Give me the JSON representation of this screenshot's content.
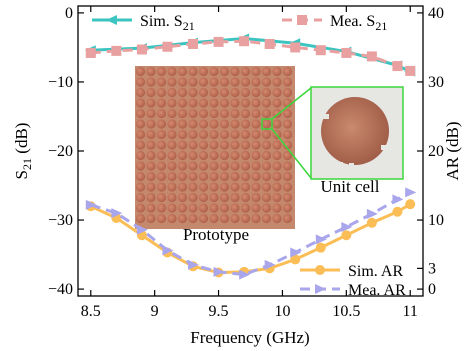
{
  "chart_data": {
    "type": "line",
    "x": [
      8.5,
      8.7,
      8.9,
      9.1,
      9.3,
      9.5,
      9.7,
      9.9,
      10.1,
      10.3,
      10.5,
      10.7,
      10.9,
      11.0
    ],
    "xlabel": "Frequency (GHz)",
    "ylabel_left": "S21 (dB)",
    "ylabel_right": "AR (dB)",
    "xlim": [
      8.4,
      11.1
    ],
    "ylim_left": [
      -41,
      1
    ],
    "ylim_right": [
      -1,
      41
    ],
    "xticks": [
      8.5,
      9,
      9.5,
      10,
      10.5,
      11
    ],
    "xtick_labels": [
      "8.5",
      "9",
      "9.5",
      "10",
      "10.5",
      "11"
    ],
    "yticks_left": [
      0,
      -10,
      -20,
      -30,
      -40
    ],
    "ytick_labels_left": [
      "0",
      "−10",
      "−20",
      "−30",
      "−40"
    ],
    "yticks_right": [
      40,
      30,
      20,
      10,
      3,
      0
    ],
    "ytick_labels_right": [
      "40",
      "30",
      "20",
      "10",
      "3",
      "0"
    ],
    "series": [
      {
        "name": "Sim. S21",
        "axis": "left",
        "color": "#3cc4c0",
        "marker": "triangle-left",
        "style": "solid",
        "x": [
          8.5,
          8.9,
          9.3,
          9.7,
          10.1,
          10.5,
          10.9,
          11.0
        ],
        "values": [
          -5.4,
          -5.1,
          -4.3,
          -3.7,
          -4.4,
          -5.6,
          -7.6,
          -8.5
        ]
      },
      {
        "name": "Mea. S21",
        "axis": "right",
        "color": "#e8a0a0",
        "marker": "square",
        "style": "dashed",
        "x": [
          8.5,
          8.7,
          8.9,
          9.1,
          9.3,
          9.5,
          9.7,
          9.9,
          10.1,
          10.3,
          10.5,
          10.7,
          10.9,
          11.0
        ],
        "values": [
          34.2,
          34.5,
          34.7,
          35.1,
          35.5,
          35.8,
          35.9,
          35.5,
          35.0,
          34.6,
          34.2,
          33.7,
          32.3,
          31.6
        ]
      },
      {
        "name": "Sim. AR",
        "axis": "right",
        "color": "#fbbd55",
        "marker": "circle",
        "style": "solid",
        "x": [
          8.5,
          8.7,
          8.9,
          9.1,
          9.3,
          9.5,
          9.7,
          9.9,
          10.1,
          10.3,
          10.5,
          10.7,
          10.9,
          11.0
        ],
        "values": [
          12.0,
          10.3,
          7.8,
          5.3,
          3.3,
          2.4,
          2.5,
          3.0,
          4.3,
          6.0,
          7.8,
          9.6,
          11.2,
          12.3
        ]
      },
      {
        "name": "Mea. AR",
        "axis": "right",
        "color": "#a9a6ec",
        "marker": "triangle-right",
        "style": "dashed",
        "x": [
          8.5,
          8.7,
          8.9,
          9.1,
          9.3,
          9.5,
          9.7,
          9.9,
          10.1,
          10.3,
          10.5,
          10.7,
          10.9,
          11.0
        ],
        "values": [
          12.2,
          11.0,
          8.6,
          5.6,
          3.5,
          2.5,
          2.1,
          3.5,
          5.3,
          7.2,
          9.0,
          10.9,
          13.0,
          14.0
        ]
      }
    ],
    "legend": [
      {
        "label": "Sim. S",
        "sub": "21",
        "placement": "top-left"
      },
      {
        "label": "Mea. S",
        "sub": "21",
        "placement": "top-right"
      },
      {
        "label": "Sim. AR",
        "placement": "bottom-right"
      },
      {
        "label": "Mea. AR",
        "placement": "bottom-right"
      }
    ],
    "annotations": [
      "Prototype",
      "Unit cell"
    ],
    "grid": false
  }
}
